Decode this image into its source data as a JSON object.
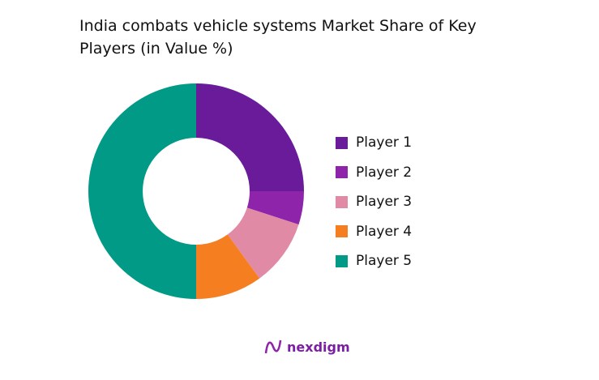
{
  "chart_data": {
    "type": "pie",
    "variant": "donut",
    "title": "India combats vehicle systems Market Share of Key Players (in Value %)",
    "categories": [
      "Player 1",
      "Player 2",
      "Player 3",
      "Player 4",
      "Player 5"
    ],
    "values": [
      25,
      5,
      10,
      10,
      50
    ],
    "colors": [
      "#6a1b9a",
      "#8e24aa",
      "#e08aa5",
      "#f57f20",
      "#009a87"
    ],
    "legend": "right"
  },
  "brand": {
    "name": "nexdigm",
    "color": "#7b1fa2"
  }
}
